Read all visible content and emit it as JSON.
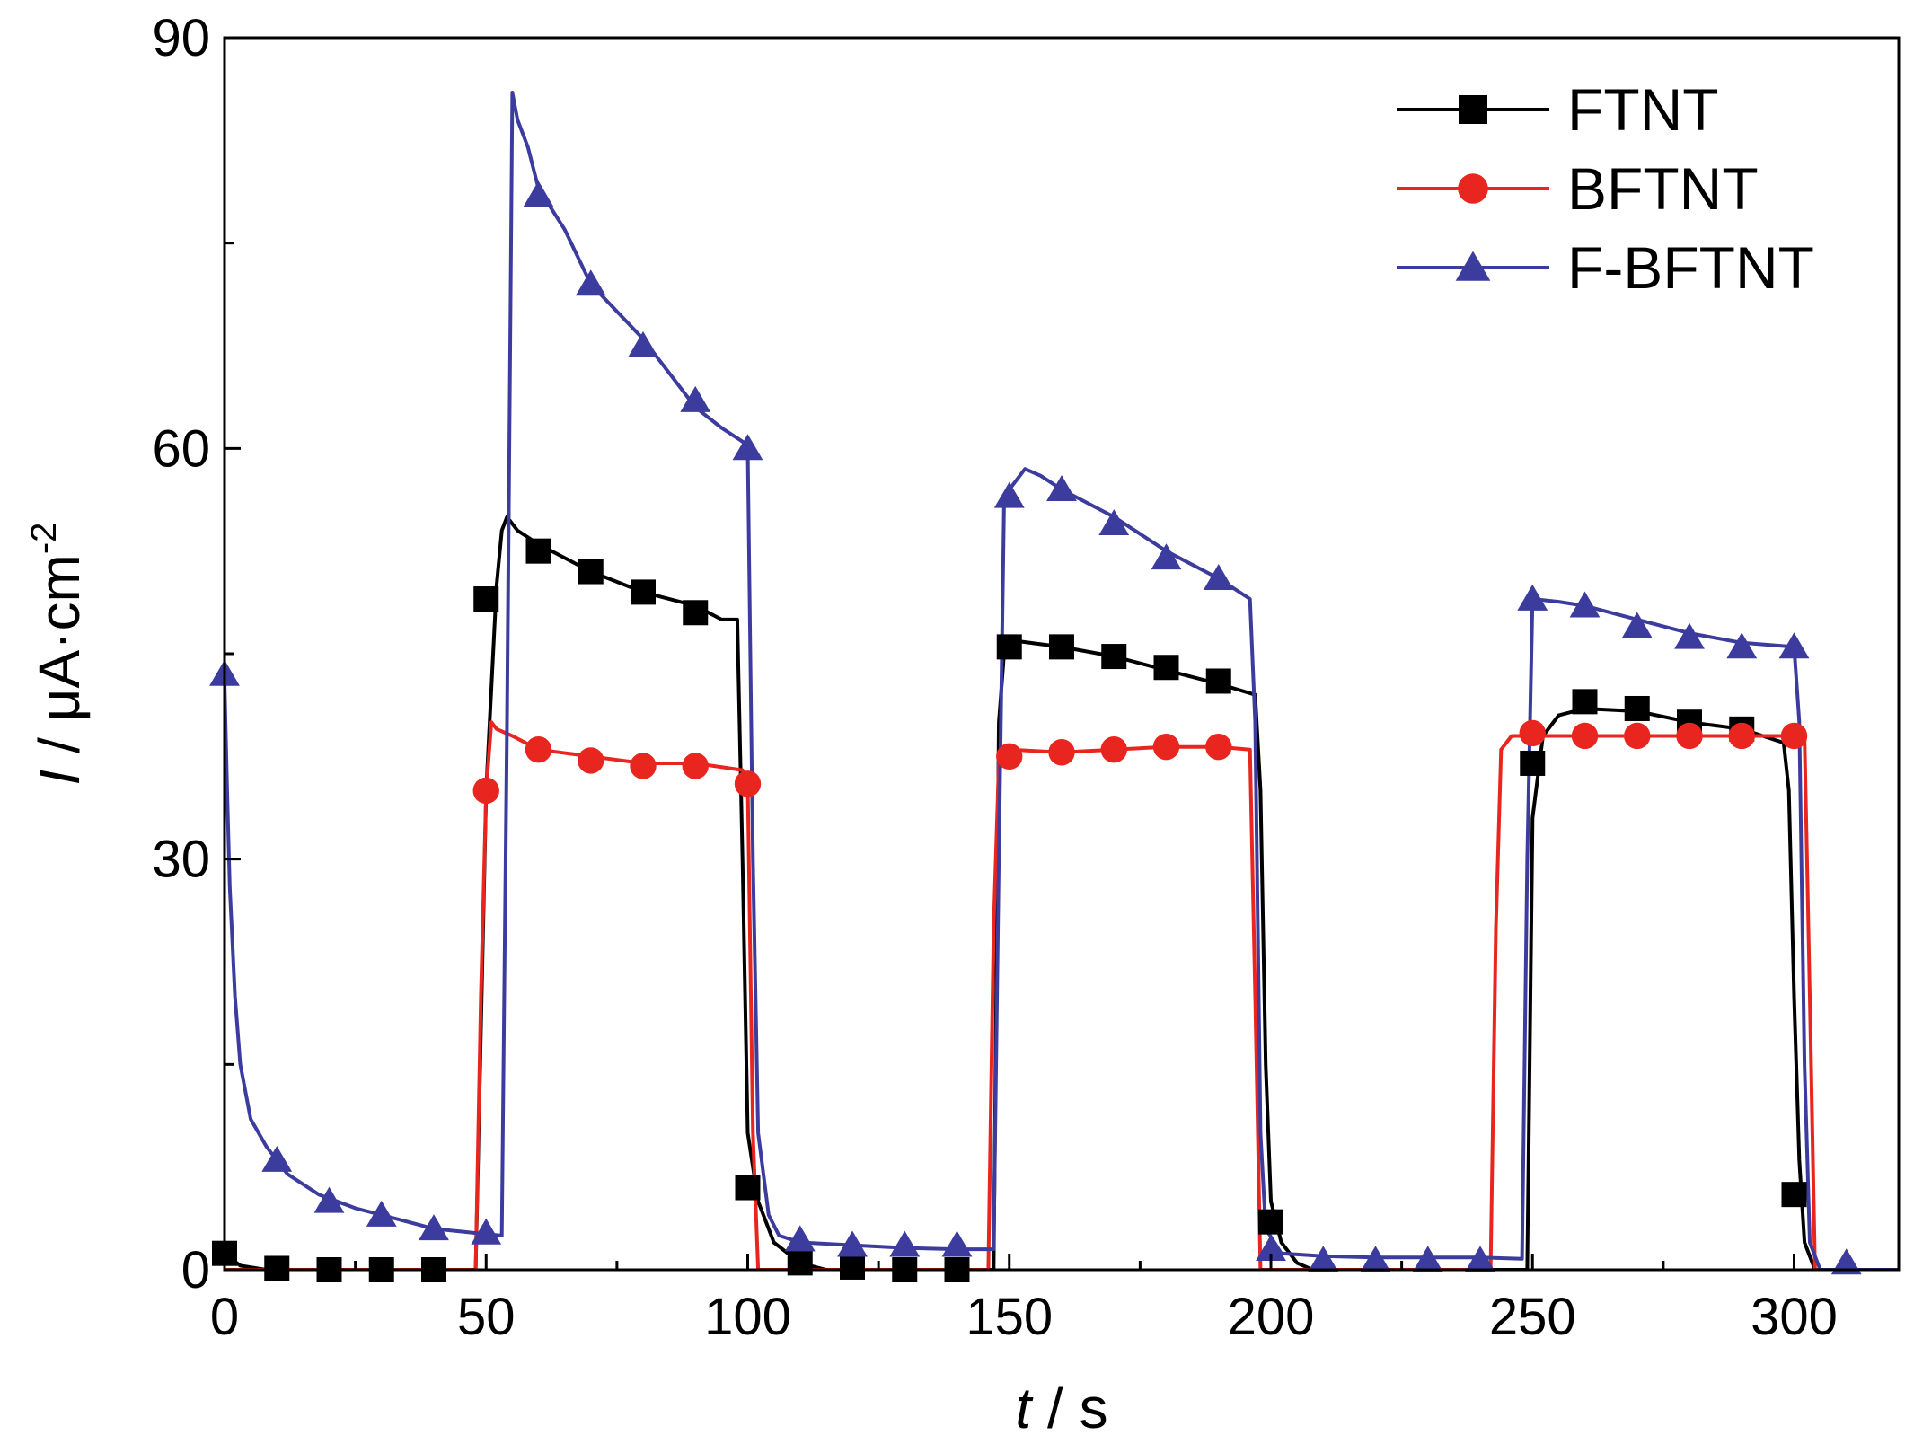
{
  "chart_data": {
    "type": "line",
    "title": "",
    "xlabel": {
      "var": "t",
      "unit": " / s"
    },
    "ylabel": {
      "var": "I",
      "unit": " / μA·cm",
      "sup": "-2"
    },
    "xlim": [
      0,
      320
    ],
    "ylim": [
      0,
      90
    ],
    "x_ticks": [
      0,
      50,
      100,
      150,
      200,
      250,
      300
    ],
    "y_ticks": [
      0,
      30,
      60,
      90
    ],
    "legend_position": "top-right",
    "series": [
      {
        "name": "FTNT",
        "color": "#000000",
        "marker": "square",
        "line": [
          [
            0,
            1.2
          ],
          [
            3,
            0.3
          ],
          [
            8,
            0
          ],
          [
            48,
            0
          ],
          [
            50,
            35
          ],
          [
            52,
            50
          ],
          [
            53,
            54
          ],
          [
            54,
            55
          ],
          [
            56,
            54
          ],
          [
            60,
            53
          ],
          [
            70,
            51
          ],
          [
            80,
            49.5
          ],
          [
            90,
            48.5
          ],
          [
            95,
            47.5
          ],
          [
            97,
            47.5
          ],
          [
            98,
            47.5
          ],
          [
            99,
            30
          ],
          [
            100,
            10
          ],
          [
            102,
            5
          ],
          [
            105,
            2
          ],
          [
            110,
            0.5
          ],
          [
            115,
            0
          ],
          [
            147,
            0
          ],
          [
            148,
            40
          ],
          [
            149,
            45
          ],
          [
            150,
            46
          ],
          [
            160,
            45.5
          ],
          [
            170,
            44.8
          ],
          [
            180,
            43.8
          ],
          [
            190,
            42.8
          ],
          [
            197,
            42
          ],
          [
            198,
            35
          ],
          [
            199,
            15
          ],
          [
            200,
            5
          ],
          [
            202,
            2
          ],
          [
            205,
            0.5
          ],
          [
            208,
            0
          ],
          [
            249,
            0
          ],
          [
            250,
            33
          ],
          [
            252,
            39
          ],
          [
            255,
            40.5
          ],
          [
            260,
            41
          ],
          [
            270,
            40.8
          ],
          [
            280,
            40
          ],
          [
            290,
            39.5
          ],
          [
            298,
            38.5
          ],
          [
            299,
            35
          ],
          [
            300,
            20
          ],
          [
            301,
            8
          ],
          [
            302,
            2
          ],
          [
            304,
            0
          ],
          [
            320,
            0
          ]
        ],
        "markers": [
          [
            0,
            1.2
          ],
          [
            10,
            0.1
          ],
          [
            20,
            0
          ],
          [
            30,
            0
          ],
          [
            40,
            0
          ],
          [
            50,
            49
          ],
          [
            60,
            52.5
          ],
          [
            70,
            51
          ],
          [
            80,
            49.5
          ],
          [
            90,
            48
          ],
          [
            100,
            6
          ],
          [
            110,
            0.5
          ],
          [
            120,
            0.2
          ],
          [
            130,
            0
          ],
          [
            140,
            0
          ],
          [
            150,
            45.5
          ],
          [
            160,
            45.5
          ],
          [
            170,
            44.8
          ],
          [
            180,
            44
          ],
          [
            190,
            43
          ],
          [
            200,
            3.5
          ],
          [
            250,
            37
          ],
          [
            260,
            41.5
          ],
          [
            270,
            41
          ],
          [
            280,
            40
          ],
          [
            290,
            39.5
          ],
          [
            300,
            5.5
          ]
        ]
      },
      {
        "name": "BFTNT",
        "color": "#e8261f",
        "marker": "circle",
        "line": [
          [
            0,
            0
          ],
          [
            48,
            0
          ],
          [
            49,
            20
          ],
          [
            50,
            35
          ],
          [
            51,
            40
          ],
          [
            52,
            39.5
          ],
          [
            55,
            39
          ],
          [
            60,
            38
          ],
          [
            70,
            37.5
          ],
          [
            80,
            37
          ],
          [
            90,
            37
          ],
          [
            99,
            36.5
          ],
          [
            100,
            35.5
          ],
          [
            101,
            10
          ],
          [
            102,
            0
          ],
          [
            146,
            0
          ],
          [
            147,
            25
          ],
          [
            148,
            37
          ],
          [
            150,
            38
          ],
          [
            160,
            37.8
          ],
          [
            170,
            38
          ],
          [
            180,
            38.2
          ],
          [
            190,
            38.2
          ],
          [
            196,
            38
          ],
          [
            197,
            20
          ],
          [
            198,
            0
          ],
          [
            242,
            0
          ],
          [
            243,
            25
          ],
          [
            244,
            38
          ],
          [
            246,
            39
          ],
          [
            250,
            39
          ],
          [
            260,
            39
          ],
          [
            270,
            39
          ],
          [
            280,
            39
          ],
          [
            290,
            39
          ],
          [
            300,
            39
          ],
          [
            302,
            39
          ],
          [
            303,
            20
          ],
          [
            304,
            0
          ],
          [
            320,
            0
          ]
        ],
        "markers": [
          [
            50,
            35
          ],
          [
            60,
            38
          ],
          [
            70,
            37.2
          ],
          [
            80,
            36.8
          ],
          [
            90,
            36.8
          ],
          [
            100,
            35.5
          ],
          [
            150,
            37.5
          ],
          [
            160,
            37.8
          ],
          [
            170,
            38
          ],
          [
            180,
            38.2
          ],
          [
            190,
            38.2
          ],
          [
            250,
            39.2
          ],
          [
            260,
            39
          ],
          [
            270,
            39
          ],
          [
            280,
            39
          ],
          [
            290,
            39
          ],
          [
            300,
            39
          ]
        ]
      },
      {
        "name": "F-BFTNT",
        "color": "#3c3c9e",
        "marker": "triangle",
        "line": [
          [
            0,
            43
          ],
          [
            0.5,
            35
          ],
          [
            1,
            28
          ],
          [
            2,
            20
          ],
          [
            3,
            15
          ],
          [
            5,
            11
          ],
          [
            8,
            9
          ],
          [
            12,
            7
          ],
          [
            18,
            5.5
          ],
          [
            25,
            4.5
          ],
          [
            30,
            4
          ],
          [
            35,
            3.5
          ],
          [
            40,
            3
          ],
          [
            45,
            2.8
          ],
          [
            50,
            2.6
          ],
          [
            53,
            2.5
          ],
          [
            54,
            40
          ],
          [
            55,
            86
          ],
          [
            56,
            84
          ],
          [
            58,
            82
          ],
          [
            60,
            79
          ],
          [
            65,
            76
          ],
          [
            70,
            72
          ],
          [
            80,
            68
          ],
          [
            90,
            63
          ],
          [
            95,
            61.5
          ],
          [
            99,
            60.5
          ],
          [
            100,
            60
          ],
          [
            101,
            30
          ],
          [
            102,
            10
          ],
          [
            104,
            4
          ],
          [
            106,
            2.5
          ],
          [
            110,
            2
          ],
          [
            120,
            1.8
          ],
          [
            130,
            1.6
          ],
          [
            140,
            1.5
          ],
          [
            147,
            1.5
          ],
          [
            148,
            30
          ],
          [
            149,
            56
          ],
          [
            150,
            57
          ],
          [
            153,
            58.5
          ],
          [
            156,
            58
          ],
          [
            160,
            57
          ],
          [
            170,
            55
          ],
          [
            180,
            52.5
          ],
          [
            190,
            50.5
          ],
          [
            196,
            49
          ],
          [
            197,
            40
          ],
          [
            198,
            10
          ],
          [
            199,
            3
          ],
          [
            202,
            1.2
          ],
          [
            210,
            1
          ],
          [
            220,
            0.9
          ],
          [
            230,
            0.9
          ],
          [
            240,
            0.9
          ],
          [
            248,
            0.8
          ],
          [
            249,
            30
          ],
          [
            250,
            49
          ],
          [
            255,
            48.8
          ],
          [
            260,
            48.5
          ],
          [
            270,
            47.5
          ],
          [
            280,
            46.5
          ],
          [
            290,
            45.8
          ],
          [
            300,
            45.5
          ],
          [
            301,
            40
          ],
          [
            302,
            15
          ],
          [
            303,
            2
          ],
          [
            305,
            0
          ],
          [
            320,
            0
          ]
        ],
        "markers": [
          [
            0,
            43.5
          ],
          [
            10,
            8
          ],
          [
            20,
            5
          ],
          [
            30,
            4
          ],
          [
            40,
            3
          ],
          [
            50,
            2.7
          ],
          [
            60,
            78.5
          ],
          [
            70,
            72
          ],
          [
            80,
            67.5
          ],
          [
            90,
            63.5
          ],
          [
            100,
            60
          ],
          [
            110,
            2.2
          ],
          [
            120,
            1.8
          ],
          [
            130,
            1.8
          ],
          [
            140,
            1.8
          ],
          [
            150,
            56.5
          ],
          [
            160,
            57
          ],
          [
            170,
            54.5
          ],
          [
            180,
            52
          ],
          [
            190,
            50.5
          ],
          [
            200,
            1.5
          ],
          [
            210,
            0.7
          ],
          [
            220,
            0.7
          ],
          [
            230,
            0.7
          ],
          [
            240,
            0.7
          ],
          [
            250,
            49
          ],
          [
            260,
            48.5
          ],
          [
            270,
            47
          ],
          [
            280,
            46.2
          ],
          [
            290,
            45.5
          ],
          [
            300,
            45.5
          ],
          [
            310,
            0.5
          ]
        ]
      }
    ]
  }
}
